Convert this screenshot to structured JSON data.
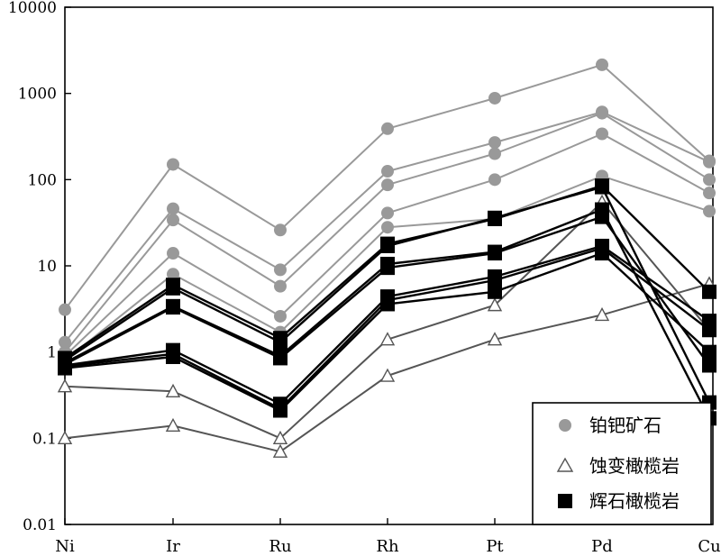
{
  "chart_data": {
    "type": "line",
    "yscale": "log",
    "ylim": [
      0.01,
      10000
    ],
    "y_ticks": [
      "0.01",
      "0.1",
      "1",
      "10",
      "100",
      "1000",
      "10000"
    ],
    "y_tick_values": [
      0.01,
      0.1,
      1,
      10,
      100,
      1000,
      10000
    ],
    "categories": [
      "Ni",
      "Ir",
      "Ru",
      "Rh",
      "Pt",
      "Pd",
      "Cu"
    ],
    "grid": false,
    "legend_position": "bottom-right",
    "legend": [
      {
        "label": "铂钯矿石",
        "marker": "circle",
        "color": "#999999"
      },
      {
        "label": "蚀变橄榄岩",
        "marker": "triangle",
        "color": "#555555"
      },
      {
        "label": "辉石橄榄岩",
        "marker": "square",
        "color": "#000000"
      }
    ],
    "groups": [
      {
        "legend_label": "铂钯矿石",
        "marker": "circle",
        "color": "#999999",
        "series": [
          {
            "values": [
              3.1,
              150,
              26,
              390,
              880,
              2150,
              165
            ]
          },
          {
            "values": [
              1.3,
              46,
              9,
              125,
              270,
              610,
              160
            ]
          },
          {
            "values": [
              1.0,
              34,
              5.8,
              87,
              200,
              590,
              100
            ]
          },
          {
            "values": [
              0.9,
              14,
              2.6,
              41,
              100,
              340,
              70
            ]
          },
          {
            "values": [
              0.8,
              8,
              1.7,
              28,
              35,
              110,
              43
            ]
          }
        ]
      },
      {
        "legend_label": "蚀变橄榄岩",
        "marker": "triangle",
        "color": "#555555",
        "series": [
          {
            "values": [
              0.4,
              0.35,
              0.1,
              1.4,
              3.5,
              55,
              1.8
            ]
          },
          {
            "values": [
              0.1,
              0.14,
              0.07,
              0.53,
              1.4,
              2.7,
              6.2
            ]
          }
        ]
      },
      {
        "legend_label": "辉石橄榄岩",
        "marker": "square",
        "color": "#000000",
        "series": [
          {
            "values": [
              0.85,
              6.0,
              1.45,
              18,
              35,
              85,
              5.0
            ]
          },
          {
            "values": [
              0.8,
              5.5,
              1.3,
              17,
              36,
              82,
              0.26
            ]
          },
          {
            "values": [
              0.75,
              3.4,
              0.9,
              10.5,
              14.5,
              45,
              0.17
            ]
          },
          {
            "values": [
              0.72,
              3.3,
              0.85,
              9.5,
              14,
              37,
              0.7
            ]
          },
          {
            "values": [
              0.7,
              1.05,
              0.25,
              4.4,
              7.5,
              17,
              2.3
            ]
          },
          {
            "values": [
              0.68,
              0.95,
              0.22,
              4.0,
              6.8,
              16,
              1.8
            ]
          },
          {
            "values": [
              0.65,
              0.88,
              0.21,
              3.6,
              5.0,
              14,
              1.0
            ]
          }
        ]
      }
    ]
  }
}
